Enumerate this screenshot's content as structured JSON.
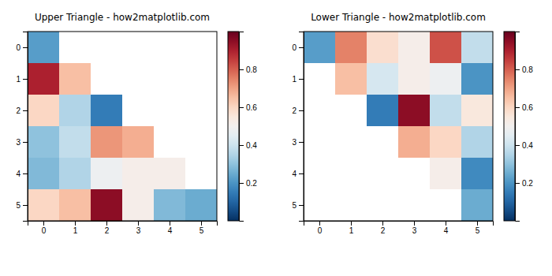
{
  "chart_data": [
    {
      "type": "heatmap",
      "title": "Upper Triangle - how2matplotlib.com",
      "color": "RdBu_r",
      "cells": [
        [
          0.22,
          null,
          null,
          null,
          null,
          null
        ],
        [
          0.9,
          0.65,
          null,
          null,
          null,
          null
        ],
        [
          0.6,
          0.35,
          0.15,
          null,
          null,
          null
        ],
        [
          0.3,
          0.38,
          0.72,
          0.68,
          null,
          null
        ],
        [
          0.28,
          0.35,
          0.48,
          0.52,
          0.52,
          null
        ],
        [
          0.6,
          0.65,
          0.95,
          0.52,
          0.28,
          0.25
        ]
      ],
      "xlim": [
        -0.5,
        5.5
      ],
      "ylim": [
        5.5,
        -0.5
      ],
      "xticks": [
        0,
        1,
        2,
        3,
        4,
        5
      ],
      "yticks": [
        0,
        1,
        2,
        3,
        4,
        5
      ],
      "color_range": [
        0.0,
        1.0
      ],
      "color_ticks": [
        0.2,
        0.4,
        0.6,
        0.8
      ]
    },
    {
      "type": "heatmap",
      "title": "Lower Triangle - how2matplotlib.com",
      "color": "RdBu_r",
      "cells": [
        [
          0.22,
          0.75,
          0.58,
          0.52,
          0.82,
          0.38
        ],
        [
          null,
          0.65,
          0.42,
          0.52,
          0.48,
          0.2
        ],
        [
          null,
          null,
          0.15,
          0.95,
          0.38,
          0.55
        ],
        [
          null,
          null,
          null,
          0.68,
          0.6,
          0.35
        ],
        [
          null,
          null,
          null,
          null,
          0.52,
          0.18
        ],
        [
          null,
          null,
          null,
          null,
          null,
          0.25
        ]
      ],
      "xlim": [
        -0.5,
        5.5
      ],
      "ylim": [
        5.5,
        -0.5
      ],
      "xticks": [
        0,
        1,
        2,
        3,
        4,
        5
      ],
      "yticks": [
        0,
        1,
        2,
        3,
        4,
        5
      ],
      "color_range": [
        0.0,
        1.0
      ],
      "color_ticks": [
        0.2,
        0.4,
        0.6,
        0.8
      ]
    }
  ]
}
